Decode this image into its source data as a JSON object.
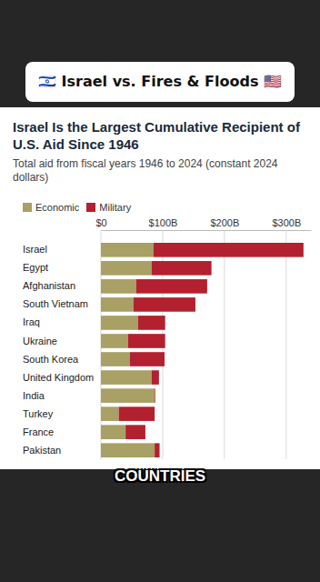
{
  "header": "🇮🇱 Israel vs. Fires & Floods 🇺🇸",
  "caption": "COUNTRIES",
  "chart_data": {
    "type": "bar",
    "orientation": "horizontal",
    "stacked": true,
    "grid": true,
    "legend": "top-left",
    "title": "Israel Is the Largest Cumulative Recipient of U.S. Aid Since 1946",
    "subtitle": "Total aid from fiscal years 1946 to 2024 (constant 2024 dollars)",
    "categories": [
      "Israel",
      "Egypt",
      "Afghanistan",
      "South Vietnam",
      "Iraq",
      "Ukraine",
      "South Korea",
      "United Kingdom",
      "India",
      "Turkey",
      "France",
      "Pakistan"
    ],
    "series": [
      {
        "name": "Economic",
        "color": "#a8a064",
        "values": [
          85,
          82,
          57,
          53,
          60,
          44,
          47,
          82,
          87,
          29,
          40,
          87
        ]
      },
      {
        "name": "Military",
        "color": "#b3202f",
        "values": [
          243,
          97,
          115,
          100,
          44,
          60,
          56,
          12,
          1,
          58,
          32,
          8
        ]
      }
    ],
    "xlim": [
      0,
      340
    ],
    "xticks": [
      {
        "value": 0,
        "label": "$0"
      },
      {
        "value": 100,
        "label": "$100B"
      },
      {
        "value": 200,
        "label": "$200B"
      },
      {
        "value": 300,
        "label": "$300B"
      }
    ]
  }
}
